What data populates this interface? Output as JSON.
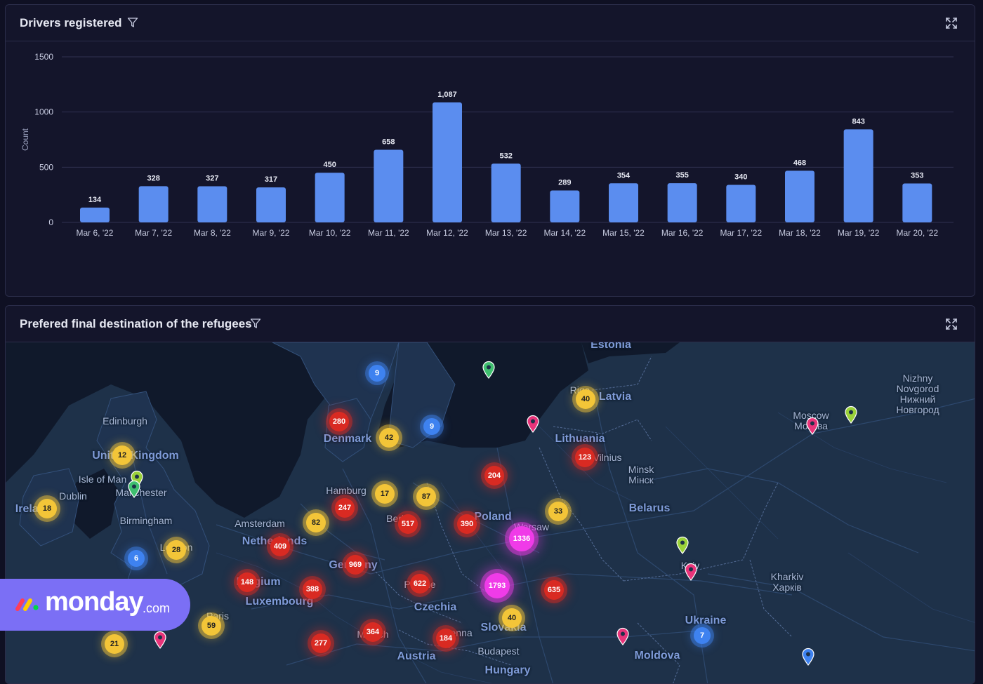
{
  "chart_panel": {
    "title": "Drivers registered",
    "icons": {
      "filter": "filter-icon",
      "expand": "expand-icon"
    }
  },
  "map_panel": {
    "title": "Prefered final destination of the refugees",
    "icons": {
      "filter": "filter-icon",
      "expand": "expand-icon"
    }
  },
  "chart_data": {
    "type": "bar",
    "title": "Drivers registered",
    "xlabel": "",
    "ylabel": "Count",
    "ylim": [
      0,
      1500
    ],
    "yticks": [
      "0",
      "500",
      "1000",
      "1500"
    ],
    "categories": [
      "Mar 6, '22",
      "Mar 7, '22",
      "Mar 8, '22",
      "Mar 9, '22",
      "Mar 10, '22",
      "Mar 11, '22",
      "Mar 12, '22",
      "Mar 13, '22",
      "Mar 14, '22",
      "Mar 15, '22",
      "Mar 16, '22",
      "Mar 17, '22",
      "Mar 18, '22",
      "Mar 19, '22",
      "Mar 20, '22"
    ],
    "values": [
      134,
      328,
      327,
      317,
      450,
      658,
      1087,
      532,
      289,
      354,
      355,
      340,
      468,
      843,
      353
    ],
    "value_labels": [
      "134",
      "328",
      "327",
      "317",
      "450",
      "658",
      "1,087",
      "532",
      "289",
      "354",
      "355",
      "340",
      "468",
      "843",
      "353"
    ],
    "grid": true,
    "bar_color": "#5b8def"
  },
  "map": {
    "labels": [
      {
        "text": "Estonia",
        "type": "country"
      },
      {
        "text": "Latvia",
        "type": "country"
      },
      {
        "text": "Lithuania",
        "type": "country"
      },
      {
        "text": "Denmark",
        "type": "country"
      },
      {
        "text": "United Kingdom",
        "type": "country"
      },
      {
        "text": "Isle of Man",
        "type": "city"
      },
      {
        "text": "Edinburgh",
        "type": "city"
      },
      {
        "text": "Dublin",
        "type": "city"
      },
      {
        "text": "Ireland",
        "type": "country"
      },
      {
        "text": "Manchester",
        "type": "city"
      },
      {
        "text": "Birmingham",
        "type": "city"
      },
      {
        "text": "London",
        "type": "city"
      },
      {
        "text": "Amsterdam",
        "type": "city"
      },
      {
        "text": "Netherlands",
        "type": "country"
      },
      {
        "text": "Belgium",
        "type": "country"
      },
      {
        "text": "Luxembourg",
        "type": "country"
      },
      {
        "text": "Paris",
        "type": "city"
      },
      {
        "text": "Hamburg",
        "type": "city"
      },
      {
        "text": "Berlin",
        "type": "city"
      },
      {
        "text": "Germany",
        "type": "country"
      },
      {
        "text": "Prague",
        "type": "city"
      },
      {
        "text": "Czechia",
        "type": "country"
      },
      {
        "text": "Munich",
        "type": "city"
      },
      {
        "text": "Vienna",
        "type": "city"
      },
      {
        "text": "Austria",
        "type": "country"
      },
      {
        "text": "Slovakia",
        "type": "country"
      },
      {
        "text": "Budapest",
        "type": "city"
      },
      {
        "text": "Hungary",
        "type": "country"
      },
      {
        "text": "Poland",
        "type": "country"
      },
      {
        "text": "Warsaw",
        "type": "city"
      },
      {
        "text": "Riga",
        "type": "city"
      },
      {
        "text": "Vilnius",
        "type": "city"
      },
      {
        "text": "Minsk",
        "type": "city"
      },
      {
        "text": "Мінск",
        "type": "city"
      },
      {
        "text": "Belarus",
        "type": "country"
      },
      {
        "text": "Kyiv",
        "type": "city"
      },
      {
        "text": "Ukraine",
        "type": "country"
      },
      {
        "text": "Moldova",
        "type": "country"
      },
      {
        "text": "Kharkiv",
        "type": "city"
      },
      {
        "text": "Харків",
        "type": "city"
      },
      {
        "text": "Moscow",
        "type": "city"
      },
      {
        "text": "Москва",
        "type": "city"
      },
      {
        "text": "Nizhny",
        "type": "city"
      },
      {
        "text": "Novgorod",
        "type": "city"
      },
      {
        "text": "Нижний",
        "type": "city"
      },
      {
        "text": "Новгород",
        "type": "city"
      }
    ],
    "clusters": [
      {
        "value": "40",
        "color": "yellow",
        "place": "Riga"
      },
      {
        "value": "9",
        "color": "blue",
        "place": "Norway coast"
      },
      {
        "value": "9",
        "color": "blue",
        "place": "Sweden south"
      },
      {
        "value": "280",
        "color": "red",
        "place": "Denmark north"
      },
      {
        "value": "42",
        "color": "yellow",
        "place": "Copenhagen"
      },
      {
        "value": "12",
        "color": "yellow",
        "place": "United Kingdom north"
      },
      {
        "value": "18",
        "color": "yellow",
        "place": "Ireland"
      },
      {
        "value": "6",
        "color": "blue",
        "place": "Bristol"
      },
      {
        "value": "28",
        "color": "yellow",
        "place": "London"
      },
      {
        "value": "123",
        "color": "red",
        "place": "Vilnius"
      },
      {
        "value": "204",
        "color": "red",
        "place": "Gdansk"
      },
      {
        "value": "17",
        "color": "yellow",
        "place": "Rostock"
      },
      {
        "value": "87",
        "color": "yellow",
        "place": "Szczecin"
      },
      {
        "value": "247",
        "color": "red",
        "place": "Hamburg"
      },
      {
        "value": "82",
        "color": "yellow",
        "place": "Hanover"
      },
      {
        "value": "517",
        "color": "red",
        "place": "Berlin"
      },
      {
        "value": "390",
        "color": "red",
        "place": "Poznan"
      },
      {
        "value": "33",
        "color": "yellow",
        "place": "Bialystok"
      },
      {
        "value": "1336",
        "color": "magenta",
        "place": "Warsaw"
      },
      {
        "value": "409",
        "color": "red",
        "place": "Netherlands"
      },
      {
        "value": "969",
        "color": "red",
        "place": "Germany"
      },
      {
        "value": "148",
        "color": "red",
        "place": "Belgium"
      },
      {
        "value": "388",
        "color": "red",
        "place": "Frankfurt"
      },
      {
        "value": "622",
        "color": "red",
        "place": "Prague"
      },
      {
        "value": "1793",
        "color": "magenta",
        "place": "Krakow"
      },
      {
        "value": "635",
        "color": "red",
        "place": "Lublin"
      },
      {
        "value": "40",
        "color": "yellow",
        "place": "Slovakia"
      },
      {
        "value": "59",
        "color": "yellow",
        "place": "Paris"
      },
      {
        "value": "21",
        "color": "yellow",
        "place": "France west"
      },
      {
        "value": "364",
        "color": "red",
        "place": "Munich"
      },
      {
        "value": "277",
        "color": "red",
        "place": "Stuttgart"
      },
      {
        "value": "184",
        "color": "red",
        "place": "Vienna"
      },
      {
        "value": "7",
        "color": "blue",
        "place": "Ukraine"
      }
    ],
    "pins": [
      {
        "color": "#3fbf6f",
        "place": "Gotland"
      },
      {
        "color": "#e8347a",
        "place": "Klaipeda"
      },
      {
        "color": "#e8347a",
        "place": "Moscow"
      },
      {
        "color": "#9ad13a",
        "place": "Moscow east"
      },
      {
        "color": "#9ad13a",
        "place": "Isle of Man"
      },
      {
        "color": "#3fbf6f",
        "place": "Manchester"
      },
      {
        "color": "#9ad13a",
        "place": "Kyiv north"
      },
      {
        "color": "#e8347a",
        "place": "Kyiv"
      },
      {
        "color": "#e8347a",
        "place": "Romania north"
      },
      {
        "color": "#e8347a",
        "place": "France"
      },
      {
        "color": "#3e82f0",
        "place": "Ukraine south"
      }
    ]
  },
  "logo": {
    "name": "monday",
    "suffix": ".com"
  }
}
